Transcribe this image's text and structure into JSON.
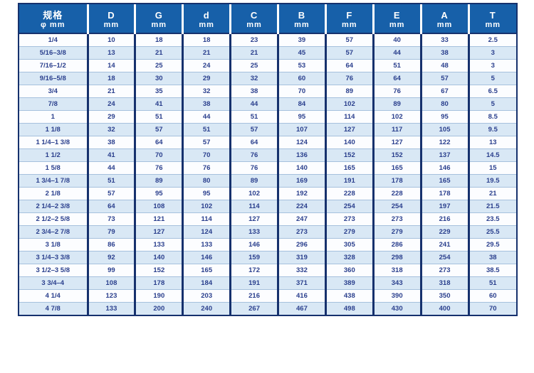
{
  "table": {
    "columns": [
      {
        "label": "规格",
        "unit": "φ mm"
      },
      {
        "label": "D",
        "unit": "mm"
      },
      {
        "label": "G",
        "unit": "mm"
      },
      {
        "label": "d",
        "unit": "mm"
      },
      {
        "label": "C",
        "unit": "mm"
      },
      {
        "label": "B",
        "unit": "mm"
      },
      {
        "label": "F",
        "unit": "mm"
      },
      {
        "label": "E",
        "unit": "mm"
      },
      {
        "label": "A",
        "unit": "mm"
      },
      {
        "label": "T",
        "unit": "mm"
      }
    ],
    "rows": [
      [
        "1/4",
        "10",
        "18",
        "18",
        "23",
        "39",
        "57",
        "40",
        "33",
        "2.5"
      ],
      [
        "5/16–3/8",
        "13",
        "21",
        "21",
        "21",
        "45",
        "57",
        "44",
        "38",
        "3"
      ],
      [
        "7/16–1/2",
        "14",
        "25",
        "24",
        "25",
        "53",
        "64",
        "51",
        "48",
        "3"
      ],
      [
        "9/16–5/8",
        "18",
        "30",
        "29",
        "32",
        "60",
        "76",
        "64",
        "57",
        "5"
      ],
      [
        "3/4",
        "21",
        "35",
        "32",
        "38",
        "70",
        "89",
        "76",
        "67",
        "6.5"
      ],
      [
        "7/8",
        "24",
        "41",
        "38",
        "44",
        "84",
        "102",
        "89",
        "80",
        "5"
      ],
      [
        "1",
        "29",
        "51",
        "44",
        "51",
        "95",
        "114",
        "102",
        "95",
        "8.5"
      ],
      [
        "1 1/8",
        "32",
        "57",
        "51",
        "57",
        "107",
        "127",
        "117",
        "105",
        "9.5"
      ],
      [
        "1 1/4–1 3/8",
        "38",
        "64",
        "57",
        "64",
        "124",
        "140",
        "127",
        "122",
        "13"
      ],
      [
        "1 1/2",
        "41",
        "70",
        "70",
        "76",
        "136",
        "152",
        "152",
        "137",
        "14.5"
      ],
      [
        "1 5/8",
        "44",
        "76",
        "76",
        "76",
        "140",
        "165",
        "165",
        "146",
        "15"
      ],
      [
        "1 3/4–1 7/8",
        "51",
        "89",
        "80",
        "89",
        "169",
        "191",
        "178",
        "165",
        "19.5"
      ],
      [
        "2 1/8",
        "57",
        "95",
        "95",
        "102",
        "192",
        "228",
        "228",
        "178",
        "21"
      ],
      [
        "2 1/4–2 3/8",
        "64",
        "108",
        "102",
        "114",
        "224",
        "254",
        "254",
        "197",
        "21.5"
      ],
      [
        "2 1/2–2 5/8",
        "73",
        "121",
        "114",
        "127",
        "247",
        "273",
        "273",
        "216",
        "23.5"
      ],
      [
        "2 3/4–2 7/8",
        "79",
        "127",
        "124",
        "133",
        "273",
        "279",
        "279",
        "229",
        "25.5"
      ],
      [
        "3 1/8",
        "86",
        "133",
        "133",
        "146",
        "296",
        "305",
        "286",
        "241",
        "29.5"
      ],
      [
        "3 1/4–3 3/8",
        "92",
        "140",
        "146",
        "159",
        "319",
        "328",
        "298",
        "254",
        "38"
      ],
      [
        "3 1/2–3 5/8",
        "99",
        "152",
        "165",
        "172",
        "332",
        "360",
        "318",
        "273",
        "38.5"
      ],
      [
        "3 3/4–4",
        "108",
        "178",
        "184",
        "191",
        "371",
        "389",
        "343",
        "318",
        "51"
      ],
      [
        "4 1/4",
        "123",
        "190",
        "203",
        "216",
        "416",
        "438",
        "390",
        "350",
        "60"
      ],
      [
        "4 7/8",
        "133",
        "200",
        "240",
        "267",
        "467",
        "498",
        "430",
        "400",
        "70"
      ]
    ]
  },
  "colors": {
    "header_bg": "#1760a9",
    "header_text": "#ffffff",
    "border_dark": "#16316d",
    "row_line": "#a6c1dd",
    "row_alt_bg": "#d9e8f5",
    "row_bg": "#fcfdff",
    "cell_text": "#2a3f8d"
  }
}
